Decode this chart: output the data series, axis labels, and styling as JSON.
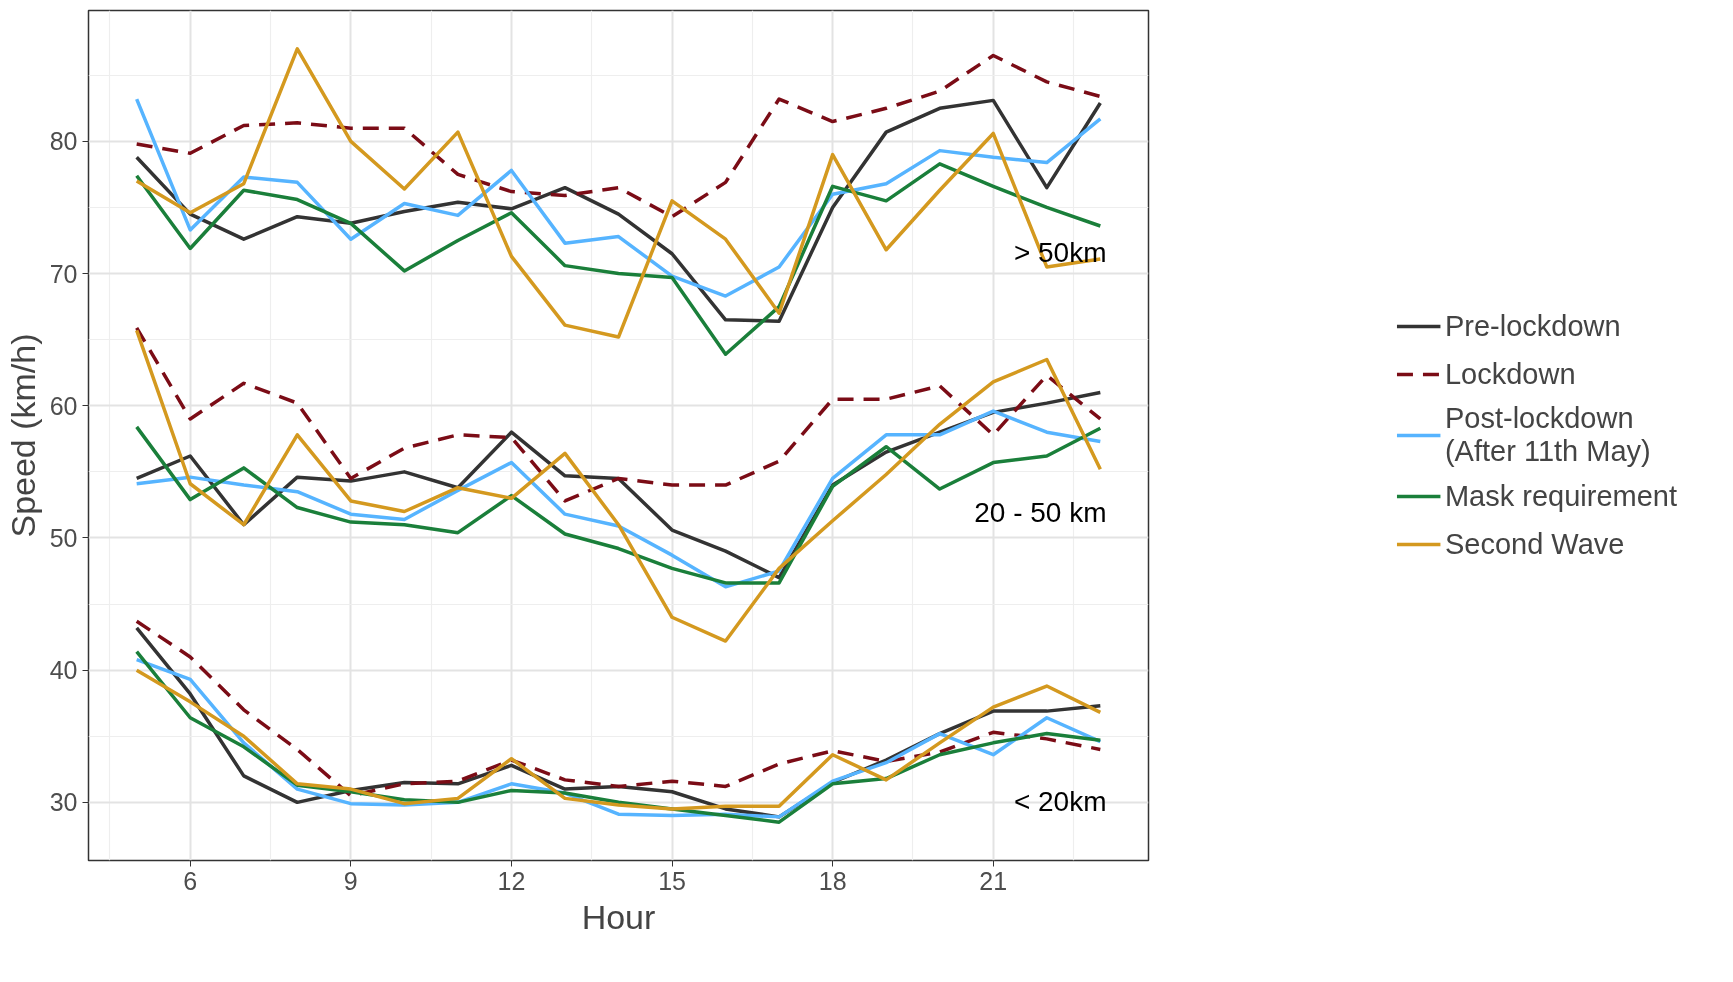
{
  "chart_data": {
    "type": "line",
    "xlabel": "Hour",
    "ylabel": "Speed (km/h)",
    "x": [
      5,
      6,
      7,
      8,
      9,
      10,
      11,
      12,
      13,
      14,
      15,
      16,
      17,
      18,
      19,
      20,
      21,
      22,
      23
    ],
    "xlim": [
      4.1,
      23.9
    ],
    "xticks": [
      6,
      9,
      12,
      15,
      18,
      21
    ],
    "ylim": [
      25.6,
      89.9
    ],
    "yticks": [
      30,
      40,
      50,
      60,
      70,
      80
    ],
    "grid": true,
    "legend": "right",
    "annotations": [
      "> 50km",
      "20 - 50 km",
      "< 20km"
    ],
    "series": [
      {
        "name": "Pre-lockdown",
        "color": "#333333",
        "line_style": "solid",
        "values": [
          78.8,
          74.5,
          72.6,
          74.3,
          73.8,
          74.7,
          75.4,
          74.9,
          76.5,
          74.5,
          71.5,
          66.5,
          66.4,
          75,
          80.7,
          82.5,
          83.1,
          76.5,
          82.9
        ]
      },
      {
        "name": "Lockdown",
        "color": "#7b0c16",
        "line_style": "dashed",
        "values": [
          79.8,
          79.1,
          81.2,
          81.4,
          81,
          81,
          77.5,
          76.2,
          75.9,
          76.5,
          74.3,
          76.9,
          83.2,
          81.5,
          82.5,
          83.8,
          86.5,
          84.5,
          83.4
        ]
      },
      {
        "name": "Post-lockdown\n(After 11th May)",
        "color": "#56b4ff",
        "line_style": "solid",
        "values": [
          83.2,
          73.3,
          77.3,
          76.9,
          72.6,
          75.3,
          74.4,
          77.8,
          72.3,
          72.8,
          69.8,
          68.3,
          70.5,
          76,
          76.8,
          79.3,
          78.8,
          78.4,
          81.7
        ]
      },
      {
        "name": "Mask requirement",
        "color": "#1a7f3a",
        "line_style": "solid",
        "values": [
          77.4,
          71.9,
          76.3,
          75.6,
          73.8,
          70.2,
          72.5,
          74.6,
          70.6,
          70,
          69.7,
          63.9,
          67.5,
          76.6,
          75.5,
          78.3,
          76.6,
          75,
          73.6
        ]
      },
      {
        "name": "Second Wave",
        "color": "#d4991f",
        "line_style": "solid",
        "values": [
          77,
          74.6,
          76.8,
          87,
          80,
          76.4,
          80.7,
          71.3,
          66.1,
          65.2,
          75.5,
          72.6,
          67,
          79,
          71.8,
          76.3,
          80.6,
          70.5,
          71.1
        ]
      },
      {
        "color": "#333333",
        "line_style": "solid",
        "values": [
          54.5,
          56.2,
          51,
          54.6,
          54.3,
          55,
          53.8,
          58,
          54.7,
          54.5,
          50.6,
          49,
          47,
          54,
          56.5,
          58,
          59.5,
          60.2,
          61
        ]
      },
      {
        "color": "#7b0c16",
        "line_style": "dashed",
        "values": [
          65.9,
          59,
          61.7,
          60.2,
          54.5,
          56.8,
          57.8,
          57.6,
          52.8,
          54.5,
          54,
          54,
          55.8,
          60.5,
          60.5,
          61.5,
          57.8,
          62.3,
          59
        ]
      },
      {
        "color": "#56b4ff",
        "line_style": "solid",
        "values": [
          54.1,
          54.6,
          54,
          53.5,
          51.8,
          51.4,
          53.6,
          55.7,
          51.8,
          50.9,
          48.7,
          46.3,
          47.5,
          54.5,
          57.8,
          57.8,
          59.6,
          58,
          57.3
        ]
      },
      {
        "color": "#1a7f3a",
        "line_style": "solid",
        "values": [
          58.4,
          52.9,
          55.3,
          52.3,
          51.2,
          51,
          50.4,
          53.2,
          50.3,
          49.2,
          47.7,
          46.6,
          46.6,
          53.9,
          56.9,
          53.7,
          55.7,
          56.2,
          58.3
        ]
      },
      {
        "color": "#d4991f",
        "line_style": "solid",
        "values": [
          65.7,
          54.1,
          51,
          57.8,
          52.8,
          52,
          53.8,
          53,
          56.4,
          51,
          44,
          42.2,
          47.7,
          51.3,
          54.8,
          58.6,
          61.8,
          63.5,
          55.2
        ]
      },
      {
        "color": "#333333",
        "line_style": "solid",
        "values": [
          43.2,
          38.2,
          32,
          30,
          30.9,
          31.5,
          31.4,
          32.8,
          31,
          31.2,
          30.8,
          29.5,
          28.9,
          31.5,
          33.2,
          35.2,
          36.9,
          36.9,
          37.3
        ]
      },
      {
        "color": "#7b0c16",
        "line_style": "dashed",
        "values": [
          43.7,
          41,
          37,
          34,
          30.5,
          31.4,
          31.6,
          33.2,
          31.7,
          31.2,
          31.6,
          31.2,
          32.9,
          33.9,
          33.1,
          33.8,
          35.3,
          34.8,
          34
        ]
      },
      {
        "color": "#56b4ff",
        "line_style": "solid",
        "values": [
          40.8,
          39.3,
          34.5,
          31,
          29.9,
          29.8,
          30,
          31.4,
          30.7,
          29.1,
          29,
          29.1,
          28.9,
          31.6,
          33,
          35.2,
          33.6,
          36.4,
          34.6
        ]
      },
      {
        "color": "#1a7f3a",
        "line_style": "solid",
        "values": [
          41.4,
          36.4,
          34.2,
          31.3,
          30.8,
          30.2,
          30,
          30.9,
          30.7,
          30,
          29.5,
          29,
          28.5,
          31.4,
          31.8,
          33.6,
          34.5,
          35.2,
          34.7
        ]
      },
      {
        "color": "#d4991f",
        "line_style": "solid",
        "values": [
          40,
          37.6,
          35,
          31.4,
          31,
          29.9,
          30.3,
          33.3,
          30.3,
          29.8,
          29.5,
          29.7,
          29.7,
          33.6,
          31.7,
          34.5,
          37.2,
          38.8,
          36.8
        ]
      }
    ]
  }
}
